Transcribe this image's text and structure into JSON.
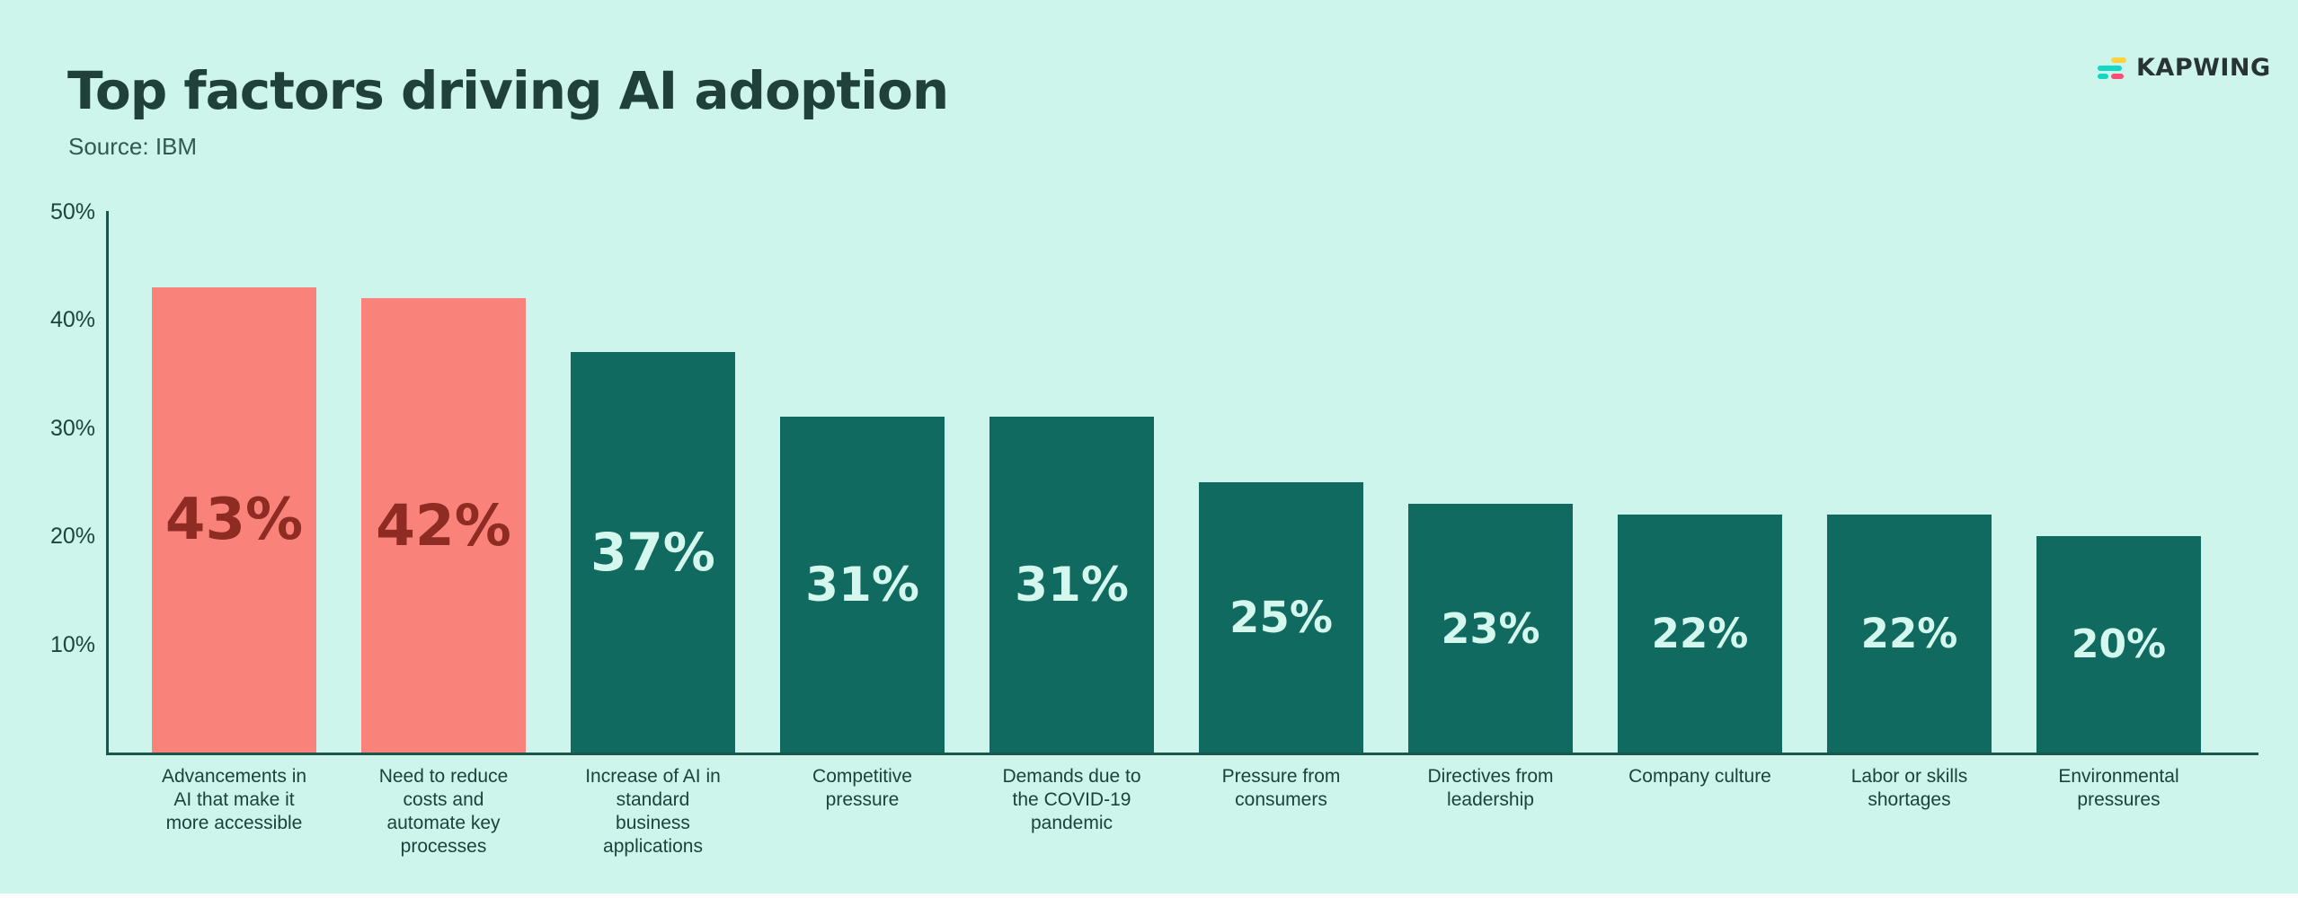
{
  "header": {
    "title": "Top factors driving AI adoption",
    "source": "Source: IBM",
    "logo_text": "KAPWING"
  },
  "colors": {
    "background": "#cdf5ec",
    "title": "#20413a",
    "axis": "#1b564c",
    "salmon_bar": "#f9837b",
    "teal_bar": "#116a60",
    "label_on_salmon": "#8e2b22",
    "label_on_teal": "#d4f7ee",
    "logo_yellow": "#ffd23e",
    "logo_teal": "#12d8c3",
    "logo_pink": "#ff4d78"
  },
  "chart_data": {
    "type": "bar",
    "title": "Top factors driving AI adoption",
    "source": "Source: IBM",
    "categories": [
      "Advancements in\nAI that make it\nmore accessible",
      "Need to reduce\ncosts and\nautomate key\nprocesses",
      "Increase of AI in\nstandard\nbusiness\napplications",
      "Competitive\npressure",
      "Demands due to\nthe COVID-19\npandemic",
      "Pressure from\nconsumers",
      "Directives from\nleadership",
      "Company culture",
      "Labor or skills\nshortages",
      "Environmental\npressures"
    ],
    "values": [
      43,
      42,
      37,
      31,
      31,
      25,
      23,
      22,
      22,
      20
    ],
    "value_labels": [
      "43%",
      "42%",
      "37%",
      "31%",
      "31%",
      "25%",
      "23%",
      "22%",
      "22%",
      "20%"
    ],
    "bar_colors": [
      "#f9837b",
      "#f9837b",
      "#116a60",
      "#116a60",
      "#116a60",
      "#116a60",
      "#116a60",
      "#116a60",
      "#116a60",
      "#116a60"
    ],
    "value_label_colors": [
      "#8e2b22",
      "#8e2b22",
      "#d4f7ee",
      "#d4f7ee",
      "#d4f7ee",
      "#d4f7ee",
      "#d4f7ee",
      "#d4f7ee",
      "#d4f7ee",
      "#d4f7ee"
    ],
    "y_ticks": [
      "10%",
      "20%",
      "30%",
      "40%",
      "50%"
    ],
    "y_tick_values": [
      10,
      20,
      30,
      40,
      50
    ],
    "ylim": [
      0,
      50
    ],
    "xlabel": "",
    "ylabel": "",
    "grid": false,
    "legend": false
  }
}
